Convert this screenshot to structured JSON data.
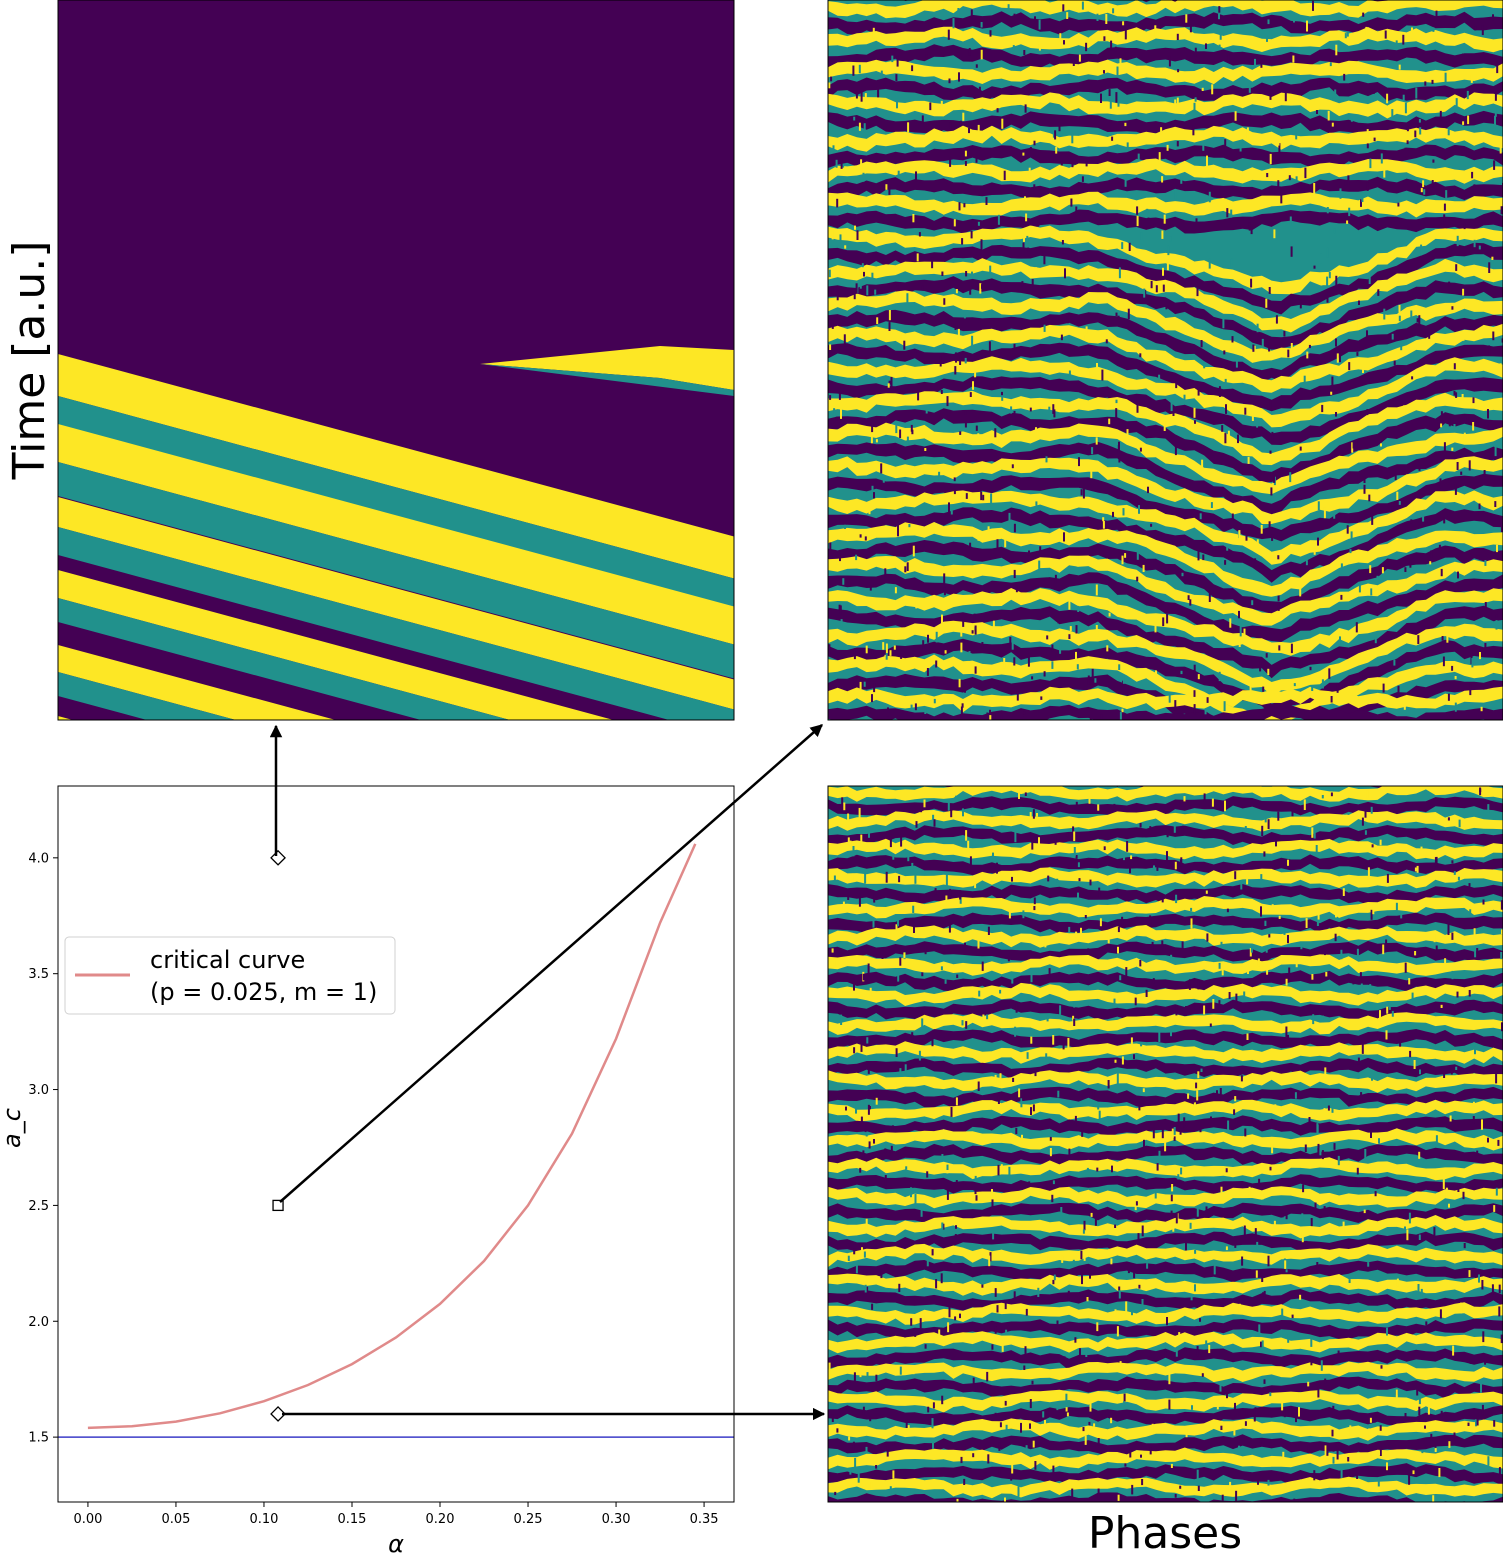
{
  "figure": {
    "top_left_ylabel": "Time [a.u.]",
    "bottom_right_xlabel": "Phases"
  },
  "legend": {
    "line1": "critical curve",
    "line2": "(p = 0.025, m = 1)"
  },
  "colors": {
    "dark": "#440154",
    "teal": "#21918c",
    "yellow": "#fde725",
    "critical_curve": "#e08a8a",
    "baseline": "#3c3cc8"
  },
  "chart_data": [
    {
      "type": "line",
      "xlabel": "α",
      "ylabel": "a_c",
      "xlim": [
        -0.017,
        0.367
      ],
      "ylim": [
        1.22,
        4.31
      ],
      "xticks": [
        "0.00",
        "0.05",
        "0.10",
        "0.15",
        "0.20",
        "0.25",
        "0.30",
        "0.35"
      ],
      "yticks": [
        "1.5",
        "2.0",
        "2.5",
        "3.0",
        "3.5",
        "4.0"
      ],
      "grid": false,
      "legend_position": "center-left",
      "series": [
        {
          "name": "critical curve (p = 0.025, m = 1)",
          "color": "#e08a8a",
          "x": [
            0.0,
            0.025,
            0.05,
            0.075,
            0.1,
            0.125,
            0.15,
            0.175,
            0.2,
            0.225,
            0.25,
            0.275,
            0.3,
            0.325,
            0.345
          ],
          "y": [
            1.54,
            1.547,
            1.567,
            1.603,
            1.655,
            1.725,
            1.815,
            1.93,
            2.075,
            2.26,
            2.5,
            2.81,
            3.22,
            3.72,
            4.06
          ]
        },
        {
          "name": "",
          "color": "#3c3cc8",
          "x": [
            -0.017,
            0.367
          ],
          "y": [
            1.5,
            1.5
          ]
        }
      ],
      "markers": [
        {
          "shape": "diamond",
          "x": 0.108,
          "y": 4.0
        },
        {
          "shape": "square",
          "x": 0.108,
          "y": 2.5
        },
        {
          "shape": "diamond",
          "x": 0.108,
          "y": 1.6
        }
      ]
    },
    {
      "type": "heatmap",
      "pattern": "ordered-stripes",
      "categories": [
        "dark",
        "teal",
        "yellow"
      ]
    },
    {
      "type": "heatmap",
      "pattern": "noisy-stripes-with-defect",
      "categories": [
        "dark",
        "teal",
        "yellow"
      ]
    },
    {
      "type": "heatmap",
      "pattern": "noisy-stripes",
      "categories": [
        "dark",
        "teal",
        "yellow"
      ]
    }
  ]
}
